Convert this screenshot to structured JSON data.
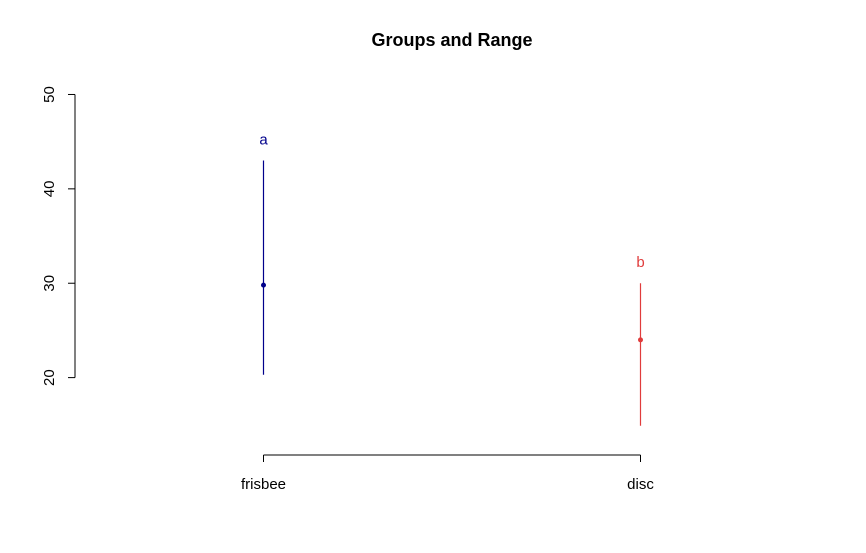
{
  "chart_data": {
    "type": "errorbar",
    "title": "Groups and Range",
    "categories": [
      "frisbee",
      "disc"
    ],
    "values": [
      29.8,
      24
    ],
    "low": [
      20.3,
      14.9
    ],
    "high": [
      43,
      30
    ],
    "labels": [
      "a",
      "b"
    ],
    "colors": [
      "#00008b",
      "#e03c3c"
    ],
    "ylim": [
      11.8,
      52
    ],
    "yticks": [
      20,
      30,
      40,
      50
    ]
  }
}
